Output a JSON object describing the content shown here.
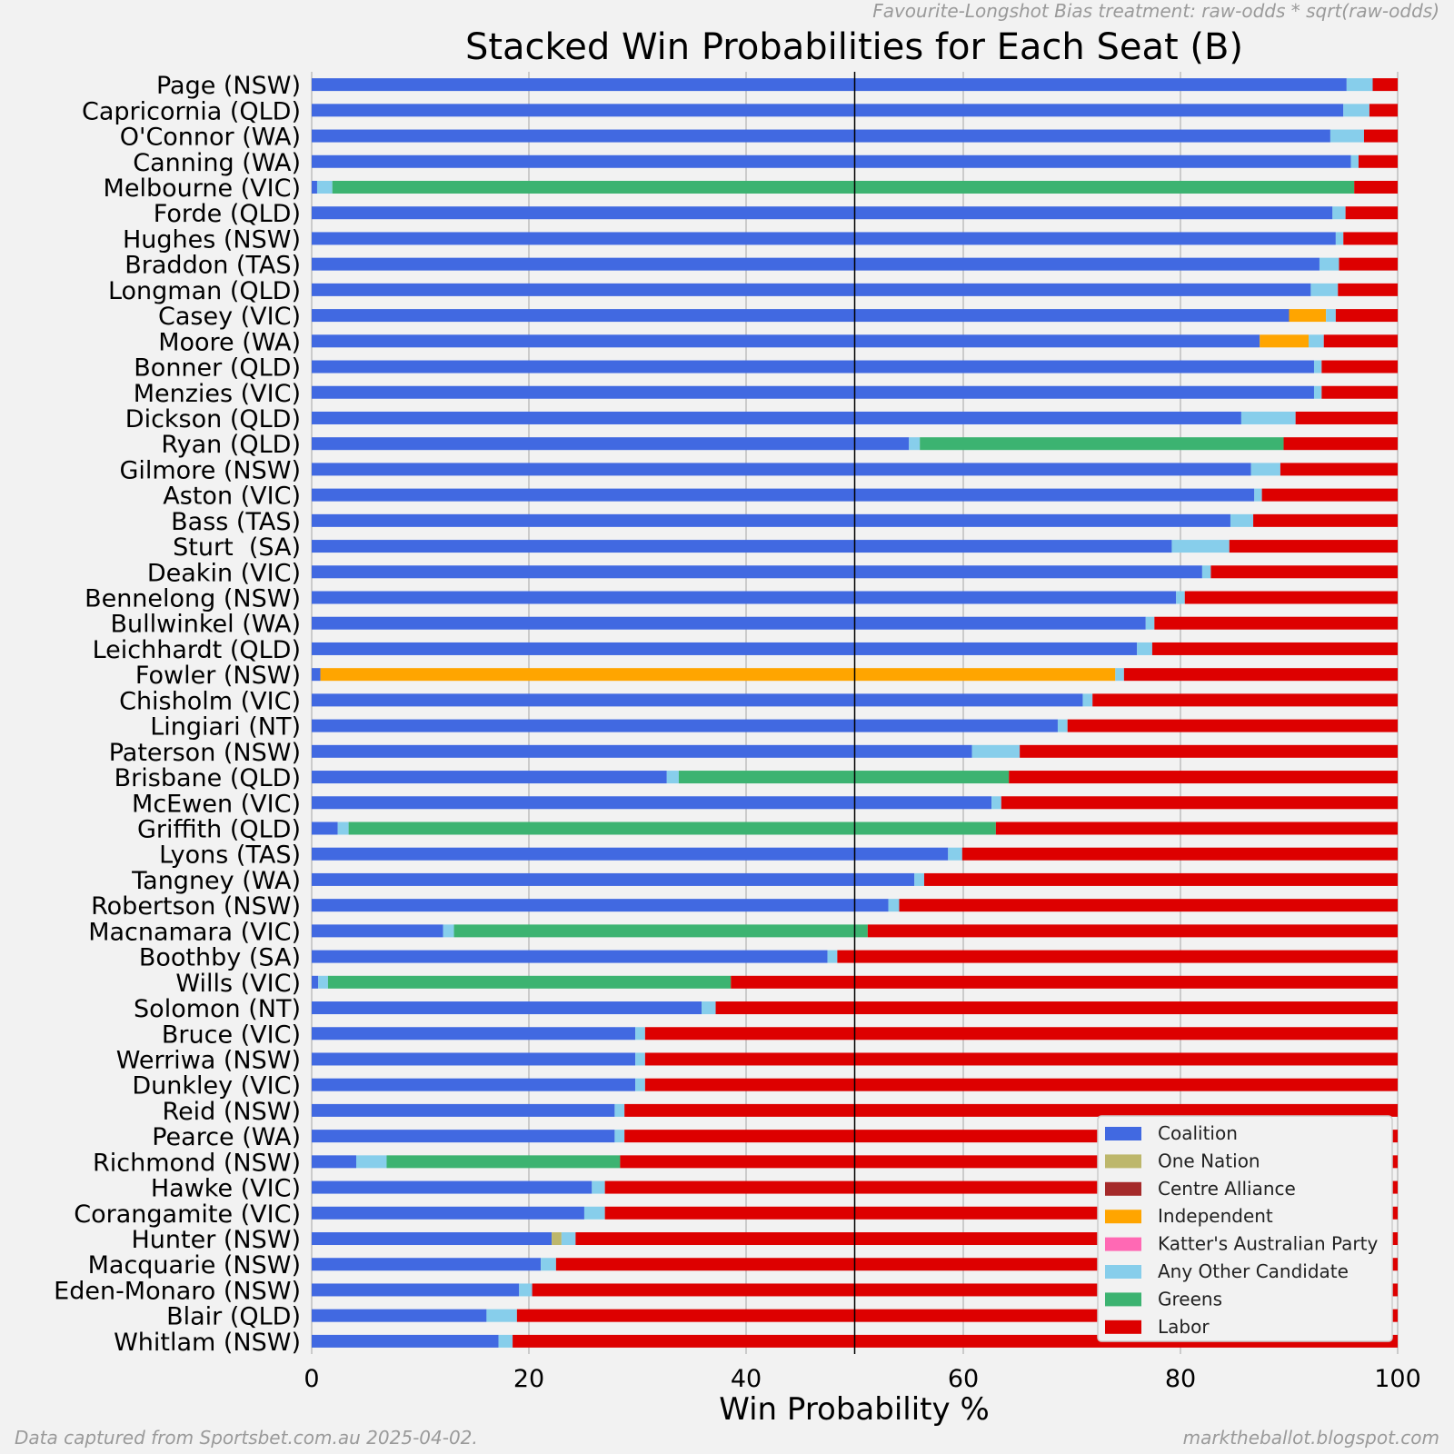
{
  "notes": {
    "treatment": "Favourite-Longshot Bias treatment: raw-odds * sqrt(raw-odds)",
    "source": "Data captured from Sportsbet.com.au 2025-04-02.",
    "site": "marktheballot.blogspot.com"
  },
  "chart_data": {
    "type": "bar",
    "orientation": "horizontal",
    "stacked": true,
    "title": "Stacked Win Probabilities for Each Seat (B)",
    "xlabel": "Win Probability %",
    "ylabel": "",
    "xlim": [
      0,
      100
    ],
    "xticks": [
      0,
      20,
      40,
      60,
      80,
      100
    ],
    "reference_line": 50,
    "grid": "vertical",
    "legend_position": "lower-right",
    "series_order": [
      "Coalition",
      "One Nation",
      "Centre Alliance",
      "Independent",
      "Katter's Australian Party",
      "Any Other Candidate",
      "Greens",
      "Labor"
    ],
    "colors": {
      "Coalition": "#4169e1",
      "One Nation": "#bdb76b",
      "Centre Alliance": "#a52a2a",
      "Independent": "#ffa500",
      "Katter's Australian Party": "#ff69b4",
      "Any Other Candidate": "#87ceeb",
      "Greens": "#3cb371",
      "Labor": "#dd0000"
    },
    "seats": [
      {
        "seat": "Page (NSW)",
        "values": {
          "Coalition": 95.3,
          "Any Other Candidate": 2.4,
          "Labor": 2.3
        }
      },
      {
        "seat": "Capricornia (QLD)",
        "values": {
          "Coalition": 95.0,
          "Any Other Candidate": 2.4,
          "Labor": 2.6
        }
      },
      {
        "seat": "O'Connor (WA)",
        "values": {
          "Coalition": 93.8,
          "Any Other Candidate": 3.1,
          "Labor": 3.1
        }
      },
      {
        "seat": "Canning (WA)",
        "values": {
          "Coalition": 95.7,
          "Any Other Candidate": 0.7,
          "Labor": 3.6
        }
      },
      {
        "seat": "Melbourne (VIC)",
        "values": {
          "Coalition": 0.5,
          "Any Other Candidate": 1.4,
          "Greens": 94.1,
          "Labor": 4.0
        }
      },
      {
        "seat": "Forde (QLD)",
        "values": {
          "Coalition": 94.0,
          "Any Other Candidate": 1.2,
          "Labor": 4.8
        }
      },
      {
        "seat": "Hughes (NSW)",
        "values": {
          "Coalition": 94.3,
          "Any Other Candidate": 0.7,
          "Labor": 5.0
        }
      },
      {
        "seat": "Braddon (TAS)",
        "values": {
          "Coalition": 92.8,
          "Any Other Candidate": 1.8,
          "Labor": 5.4
        }
      },
      {
        "seat": "Longman (QLD)",
        "values": {
          "Coalition": 92.0,
          "Any Other Candidate": 2.5,
          "Labor": 5.5
        }
      },
      {
        "seat": "Casey (VIC)",
        "values": {
          "Coalition": 90.0,
          "Independent": 3.4,
          "Any Other Candidate": 0.9,
          "Labor": 5.7
        }
      },
      {
        "seat": "Moore (WA)",
        "values": {
          "Coalition": 87.3,
          "Independent": 4.5,
          "Any Other Candidate": 1.4,
          "Labor": 6.8
        }
      },
      {
        "seat": "Bonner (QLD)",
        "values": {
          "Coalition": 92.3,
          "Any Other Candidate": 0.7,
          "Labor": 7.0
        }
      },
      {
        "seat": "Menzies (VIC)",
        "values": {
          "Coalition": 92.3,
          "Any Other Candidate": 0.7,
          "Labor": 7.0
        }
      },
      {
        "seat": "Dickson (QLD)",
        "values": {
          "Coalition": 85.6,
          "Any Other Candidate": 5.0,
          "Labor": 9.4
        }
      },
      {
        "seat": "Ryan (QLD)",
        "values": {
          "Coalition": 55.0,
          "Any Other Candidate": 1.0,
          "Greens": 33.5,
          "Labor": 10.5
        }
      },
      {
        "seat": "Gilmore (NSW)",
        "values": {
          "Coalition": 86.5,
          "Any Other Candidate": 2.7,
          "Labor": 10.8
        }
      },
      {
        "seat": "Aston (VIC)",
        "values": {
          "Coalition": 86.8,
          "Any Other Candidate": 0.7,
          "Labor": 12.5
        }
      },
      {
        "seat": "Bass (TAS)",
        "values": {
          "Coalition": 84.6,
          "Any Other Candidate": 2.1,
          "Labor": 13.3
        }
      },
      {
        "seat": "Sturt  (SA)",
        "values": {
          "Coalition": 79.2,
          "Any Other Candidate": 5.3,
          "Labor": 15.5
        }
      },
      {
        "seat": "Deakin (VIC)",
        "values": {
          "Coalition": 82.0,
          "Any Other Candidate": 0.8,
          "Labor": 17.2
        }
      },
      {
        "seat": "Bennelong (NSW)",
        "values": {
          "Coalition": 79.6,
          "Any Other Candidate": 0.8,
          "Labor": 19.6
        }
      },
      {
        "seat": "Bullwinkel (WA)",
        "values": {
          "Coalition": 76.8,
          "Any Other Candidate": 0.8,
          "Labor": 22.4
        }
      },
      {
        "seat": "Leichhardt (QLD)",
        "values": {
          "Coalition": 76.0,
          "Any Other Candidate": 1.4,
          "Labor": 22.6
        }
      },
      {
        "seat": "Fowler (NSW)",
        "values": {
          "Coalition": 0.8,
          "Independent": 73.2,
          "Any Other Candidate": 0.8,
          "Labor": 25.2
        }
      },
      {
        "seat": "Chisholm (VIC)",
        "values": {
          "Coalition": 71.0,
          "Any Other Candidate": 0.9,
          "Labor": 28.1
        }
      },
      {
        "seat": "Lingiari (NT)",
        "values": {
          "Coalition": 68.7,
          "Any Other Candidate": 0.9,
          "Labor": 30.4
        }
      },
      {
        "seat": "Paterson (NSW)",
        "values": {
          "Coalition": 60.8,
          "Any Other Candidate": 4.4,
          "Labor": 34.8
        }
      },
      {
        "seat": "Brisbane (QLD)",
        "values": {
          "Coalition": 32.7,
          "Any Other Candidate": 1.1,
          "Greens": 30.4,
          "Labor": 35.8
        }
      },
      {
        "seat": "McEwen (VIC)",
        "values": {
          "Coalition": 62.6,
          "Any Other Candidate": 0.9,
          "Labor": 36.5
        }
      },
      {
        "seat": "Griffith (QLD)",
        "values": {
          "Coalition": 2.4,
          "Any Other Candidate": 1.0,
          "Greens": 59.6,
          "Labor": 37.0
        }
      },
      {
        "seat": "Lyons (TAS)",
        "values": {
          "Coalition": 58.6,
          "Any Other Candidate": 1.3,
          "Labor": 40.1
        }
      },
      {
        "seat": "Tangney (WA)",
        "values": {
          "Coalition": 55.5,
          "Any Other Candidate": 0.9,
          "Labor": 43.6
        }
      },
      {
        "seat": "Robertson (NSW)",
        "values": {
          "Coalition": 53.1,
          "Any Other Candidate": 1.0,
          "Labor": 45.9
        }
      },
      {
        "seat": "Macnamara (VIC)",
        "values": {
          "Coalition": 12.1,
          "Any Other Candidate": 1.0,
          "Greens": 38.1,
          "Labor": 48.8
        }
      },
      {
        "seat": "Boothby (SA)",
        "values": {
          "Coalition": 47.5,
          "Any Other Candidate": 0.9,
          "Labor": 51.6
        }
      },
      {
        "seat": "Wills (VIC)",
        "values": {
          "Coalition": 0.6,
          "Any Other Candidate": 0.9,
          "Greens": 37.1,
          "Labor": 61.4
        }
      },
      {
        "seat": "Solomon (NT)",
        "values": {
          "Coalition": 35.9,
          "Any Other Candidate": 1.3,
          "Labor": 62.8
        }
      },
      {
        "seat": "Bruce (VIC)",
        "values": {
          "Coalition": 29.8,
          "Any Other Candidate": 0.9,
          "Labor": 69.3
        }
      },
      {
        "seat": "Werriwa (NSW)",
        "values": {
          "Coalition": 29.8,
          "Any Other Candidate": 0.9,
          "Labor": 69.3
        }
      },
      {
        "seat": "Dunkley (VIC)",
        "values": {
          "Coalition": 29.8,
          "Any Other Candidate": 0.9,
          "Labor": 69.3
        }
      },
      {
        "seat": "Reid (NSW)",
        "values": {
          "Coalition": 27.9,
          "Any Other Candidate": 0.9,
          "Labor": 71.2
        }
      },
      {
        "seat": "Pearce (WA)",
        "values": {
          "Coalition": 27.9,
          "Any Other Candidate": 0.9,
          "Labor": 71.2
        }
      },
      {
        "seat": "Richmond (NSW)",
        "values": {
          "Coalition": 4.1,
          "Any Other Candidate": 2.8,
          "Greens": 21.5,
          "Labor": 71.6
        }
      },
      {
        "seat": "Hawke (VIC)",
        "values": {
          "Coalition": 25.8,
          "Any Other Candidate": 1.2,
          "Labor": 73.0
        }
      },
      {
        "seat": "Corangamite (VIC)",
        "values": {
          "Coalition": 25.1,
          "Any Other Candidate": 1.9,
          "Labor": 73.0
        }
      },
      {
        "seat": "Hunter (NSW)",
        "values": {
          "Coalition": 22.1,
          "One Nation": 0.9,
          "Any Other Candidate": 1.3,
          "Labor": 75.7
        }
      },
      {
        "seat": "Macquarie (NSW)",
        "values": {
          "Coalition": 21.1,
          "Any Other Candidate": 1.4,
          "Labor": 77.5
        }
      },
      {
        "seat": "Eden-Monaro (NSW)",
        "values": {
          "Coalition": 19.1,
          "Any Other Candidate": 1.2,
          "Labor": 79.7
        }
      },
      {
        "seat": "Blair (QLD)",
        "values": {
          "Coalition": 16.1,
          "Any Other Candidate": 2.8,
          "Labor": 81.1
        }
      },
      {
        "seat": "Whitlam (NSW)",
        "values": {
          "Coalition": 17.2,
          "Any Other Candidate": 1.3,
          "Labor": 81.5
        }
      }
    ]
  }
}
